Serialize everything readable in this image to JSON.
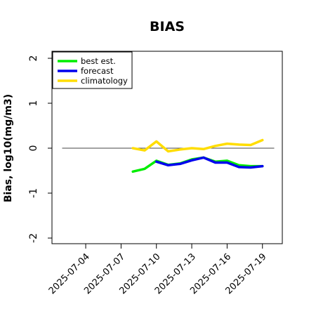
{
  "chart_data": {
    "type": "line",
    "title": "BIAS",
    "xlabel": "",
    "ylabel": "Bias, log10(mg/m3)",
    "ylim": [
      -2,
      2
    ],
    "y_ticks": [
      -2,
      -1,
      0,
      1,
      2
    ],
    "y_tick_labels": [
      "-2",
      "-1",
      "0",
      "1",
      "2"
    ],
    "x_range": [
      "2025-07-02",
      "2025-07-20"
    ],
    "x_ticks": [
      "2025-07-04",
      "2025-07-07",
      "2025-07-10",
      "2025-07-13",
      "2025-07-16",
      "2025-07-19"
    ],
    "highlight_tick": "2025-07-10",
    "highlight_color": "#228b22",
    "reference_line": 0,
    "legend_position": "top-left",
    "grid": false,
    "series": [
      {
        "name": "best est.",
        "color": "#00ee00",
        "points": [
          {
            "x": "2025-07-08",
            "y": -0.52
          },
          {
            "x": "2025-07-09",
            "y": -0.46
          },
          {
            "x": "2025-07-10",
            "y": -0.28
          },
          {
            "x": "2025-07-11",
            "y": -0.37
          },
          {
            "x": "2025-07-12",
            "y": -0.34
          },
          {
            "x": "2025-07-13",
            "y": -0.25
          },
          {
            "x": "2025-07-14",
            "y": -0.21
          },
          {
            "x": "2025-07-15",
            "y": -0.3
          },
          {
            "x": "2025-07-16",
            "y": -0.28
          },
          {
            "x": "2025-07-17",
            "y": -0.38
          },
          {
            "x": "2025-07-18",
            "y": -0.4
          },
          {
            "x": "2025-07-19",
            "y": -0.4
          }
        ]
      },
      {
        "name": "forecast",
        "color": "#0000ee",
        "points": [
          {
            "x": "2025-07-10",
            "y": -0.3
          },
          {
            "x": "2025-07-11",
            "y": -0.38
          },
          {
            "x": "2025-07-12",
            "y": -0.35
          },
          {
            "x": "2025-07-13",
            "y": -0.27
          },
          {
            "x": "2025-07-14",
            "y": -0.21
          },
          {
            "x": "2025-07-15",
            "y": -0.32
          },
          {
            "x": "2025-07-16",
            "y": -0.32
          },
          {
            "x": "2025-07-17",
            "y": -0.42
          },
          {
            "x": "2025-07-18",
            "y": -0.43
          },
          {
            "x": "2025-07-19",
            "y": -0.4
          }
        ]
      },
      {
        "name": "climatology",
        "color": "#ffdd00",
        "points": [
          {
            "x": "2025-07-08",
            "y": 0.0
          },
          {
            "x": "2025-07-09",
            "y": -0.05
          },
          {
            "x": "2025-07-10",
            "y": 0.15
          },
          {
            "x": "2025-07-11",
            "y": -0.07
          },
          {
            "x": "2025-07-12",
            "y": -0.03
          },
          {
            "x": "2025-07-13",
            "y": 0.0
          },
          {
            "x": "2025-07-14",
            "y": -0.02
          },
          {
            "x": "2025-07-15",
            "y": 0.05
          },
          {
            "x": "2025-07-16",
            "y": 0.1
          },
          {
            "x": "2025-07-17",
            "y": 0.08
          },
          {
            "x": "2025-07-18",
            "y": 0.07
          },
          {
            "x": "2025-07-19",
            "y": 0.18
          }
        ]
      }
    ]
  }
}
